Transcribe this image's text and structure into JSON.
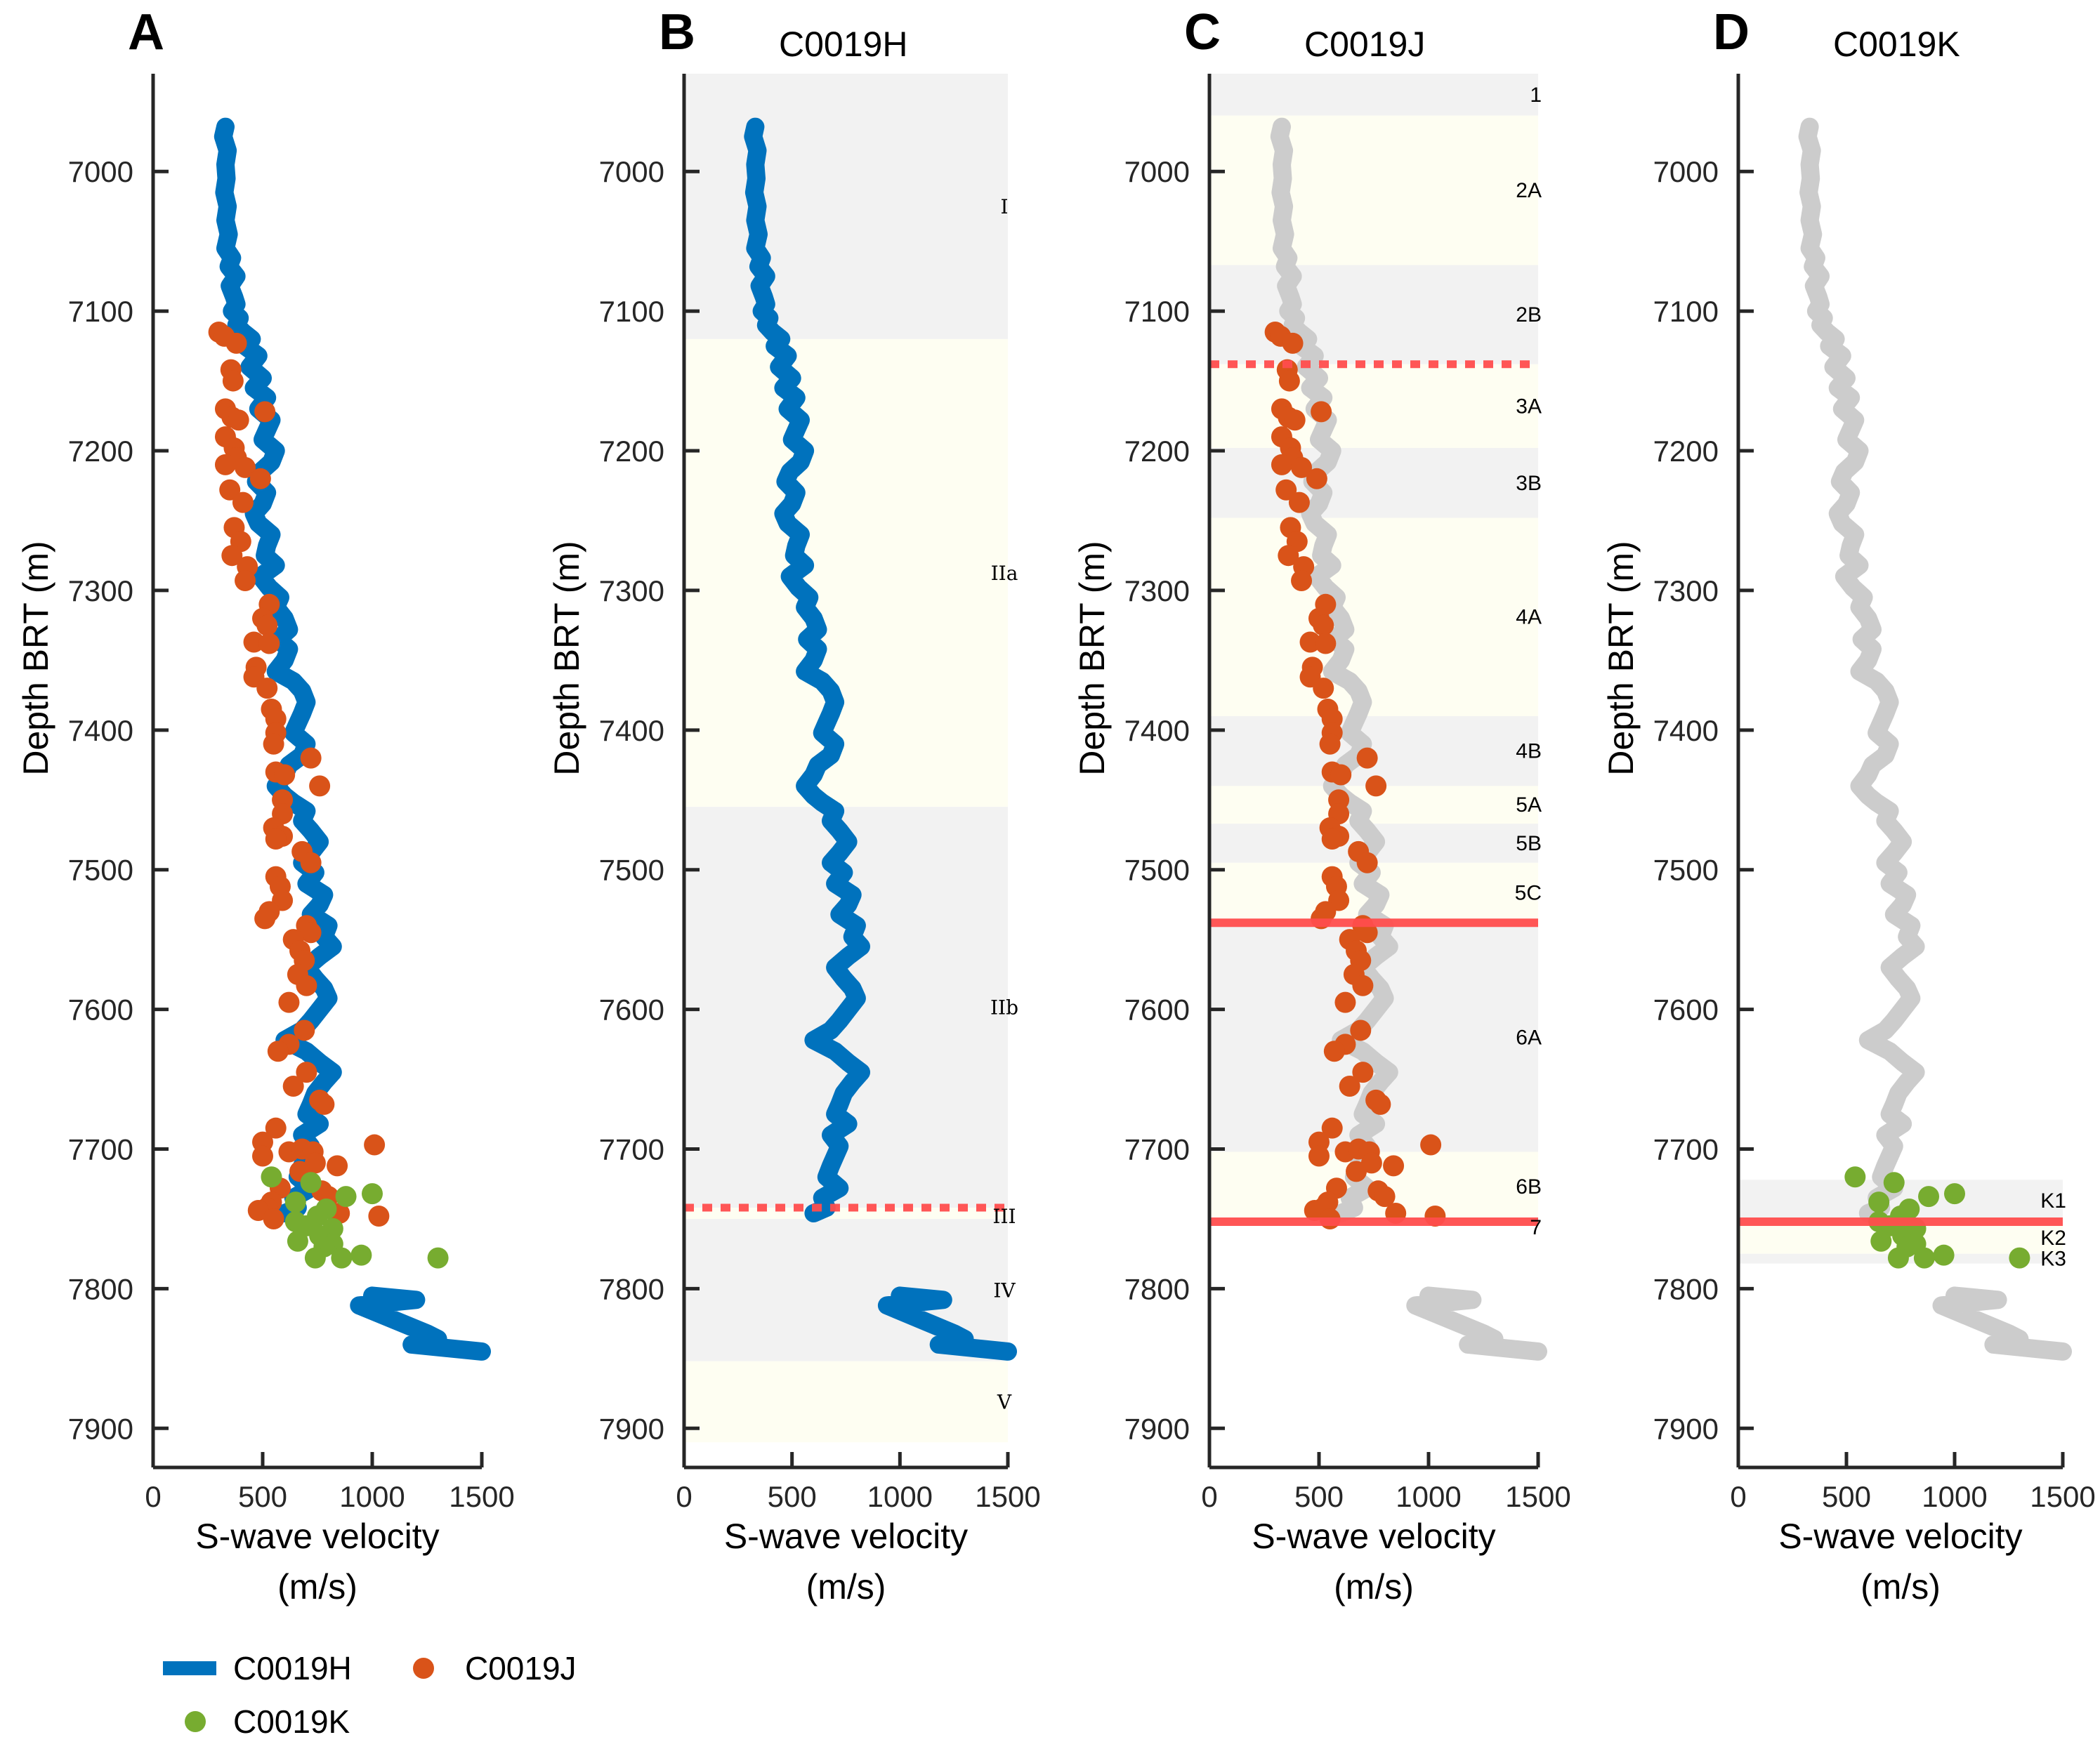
{
  "chart_data": {
    "type": "scatter",
    "figure": "S-wave velocity vs depth for boreholes C0019H, C0019J, C0019K",
    "ylim": [
      6930,
      7928
    ],
    "xlim": [
      0,
      1500
    ],
    "yreversed": true,
    "y_ticks": [
      7000,
      7100,
      7200,
      7300,
      7400,
      7500,
      7600,
      7700,
      7800,
      7900
    ],
    "x_ticks": [
      0,
      500,
      1000,
      1500
    ],
    "ylabel": "Depth BRT (m)",
    "xlabel_line1": "S-wave velocity",
    "xlabel_line2": "(m/s)",
    "colors": {
      "C0019H": "#0072BD",
      "C0019J": "#D95319",
      "C0019K": "#77AC30",
      "background_profile": "#CCCCCC",
      "band_gray": "#F2F2F2",
      "band_yellow": "#FEFEF2",
      "boundary_red": "#FF4D4D"
    },
    "legend": {
      "placement": "bottom-left",
      "entries": [
        {
          "name": "C0019H",
          "marker": "line"
        },
        {
          "name": "C0019J",
          "marker": "dot"
        },
        {
          "name": "C0019K",
          "marker": "dot"
        }
      ]
    },
    "series": {
      "C0019H": {
        "name": "C0019H",
        "style": "thick-line",
        "depth": [
          6968,
          6975,
          6985,
          6995,
          7005,
          7015,
          7025,
          7035,
          7045,
          7055,
          7062,
          7068,
          7075,
          7082,
          7090,
          7095,
          7100,
          7105,
          7110,
          7115,
          7120,
          7125,
          7132,
          7140,
          7148,
          7155,
          7162,
          7170,
          7178,
          7185,
          7192,
          7200,
          7208,
          7215,
          7222,
          7230,
          7238,
          7245,
          7252,
          7260,
          7268,
          7275,
          7282,
          7290,
          7298,
          7305,
          7312,
          7320,
          7328,
          7335,
          7342,
          7350,
          7358,
          7365,
          7372,
          7380,
          7388,
          7395,
          7402,
          7410,
          7418,
          7425,
          7432,
          7440,
          7447,
          7452,
          7458,
          7465,
          7472,
          7480,
          7488,
          7495,
          7502,
          7510,
          7518,
          7525,
          7532,
          7540,
          7548,
          7555,
          7562,
          7570,
          7578,
          7585,
          7592,
          7600,
          7608,
          7615,
          7622,
          7630,
          7638,
          7645,
          7652,
          7660,
          7668,
          7675,
          7682,
          7690,
          7698,
          7705,
          7712,
          7720,
          7728,
          7735,
          7742,
          7746,
          7805,
          7808,
          7812,
          7832,
          7836,
          7840,
          7845
        ],
        "vs": [
          330,
          320,
          340,
          330,
          335,
          325,
          340,
          330,
          345,
          330,
          360,
          345,
          380,
          350,
          370,
          380,
          360,
          395,
          380,
          410,
          450,
          420,
          480,
          440,
          500,
          460,
          520,
          480,
          540,
          520,
          500,
          560,
          540,
          490,
          470,
          520,
          500,
          460,
          480,
          540,
          520,
          510,
          560,
          490,
          530,
          580,
          560,
          600,
          620,
          570,
          620,
          600,
          560,
          640,
          680,
          700,
          680,
          660,
          640,
          700,
          680,
          620,
          600,
          560,
          600,
          640,
          700,
          680,
          720,
          760,
          720,
          680,
          740,
          700,
          780,
          760,
          720,
          800,
          780,
          820,
          760,
          700,
          740,
          780,
          800,
          760,
          720,
          680,
          600,
          700,
          760,
          820,
          780,
          740,
          720,
          700,
          760,
          680,
          720,
          700,
          680,
          660,
          720,
          640,
          660,
          600,
          1000,
          1200,
          940,
          1250,
          1300,
          1180,
          1500
        ]
      },
      "C0019J": {
        "name": "C0019J",
        "style": "dots",
        "points": [
          {
            "depth": 7115,
            "vs": 300
          },
          {
            "depth": 7118,
            "vs": 325
          },
          {
            "depth": 7123,
            "vs": 380
          },
          {
            "depth": 7142,
            "vs": 355
          },
          {
            "depth": 7150,
            "vs": 365
          },
          {
            "depth": 7170,
            "vs": 330
          },
          {
            "depth": 7176,
            "vs": 360
          },
          {
            "depth": 7178,
            "vs": 390
          },
          {
            "depth": 7172,
            "vs": 510
          },
          {
            "depth": 7190,
            "vs": 330
          },
          {
            "depth": 7198,
            "vs": 370
          },
          {
            "depth": 7205,
            "vs": 380
          },
          {
            "depth": 7210,
            "vs": 330
          },
          {
            "depth": 7212,
            "vs": 420
          },
          {
            "depth": 7220,
            "vs": 490
          },
          {
            "depth": 7228,
            "vs": 350
          },
          {
            "depth": 7237,
            "vs": 410
          },
          {
            "depth": 7255,
            "vs": 370
          },
          {
            "depth": 7265,
            "vs": 400
          },
          {
            "depth": 7275,
            "vs": 360
          },
          {
            "depth": 7283,
            "vs": 430
          },
          {
            "depth": 7293,
            "vs": 420
          },
          {
            "depth": 7310,
            "vs": 530
          },
          {
            "depth": 7320,
            "vs": 500
          },
          {
            "depth": 7325,
            "vs": 520
          },
          {
            "depth": 7337,
            "vs": 460
          },
          {
            "depth": 7338,
            "vs": 530
          },
          {
            "depth": 7355,
            "vs": 470
          },
          {
            "depth": 7362,
            "vs": 460
          },
          {
            "depth": 7370,
            "vs": 520
          },
          {
            "depth": 7385,
            "vs": 540
          },
          {
            "depth": 7392,
            "vs": 560
          },
          {
            "depth": 7402,
            "vs": 560
          },
          {
            "depth": 7410,
            "vs": 550
          },
          {
            "depth": 7420,
            "vs": 720
          },
          {
            "depth": 7430,
            "vs": 560
          },
          {
            "depth": 7432,
            "vs": 600
          },
          {
            "depth": 7440,
            "vs": 760
          },
          {
            "depth": 7450,
            "vs": 590
          },
          {
            "depth": 7460,
            "vs": 590
          },
          {
            "depth": 7470,
            "vs": 550
          },
          {
            "depth": 7476,
            "vs": 590
          },
          {
            "depth": 7478,
            "vs": 560
          },
          {
            "depth": 7487,
            "vs": 680
          },
          {
            "depth": 7495,
            "vs": 720
          },
          {
            "depth": 7505,
            "vs": 560
          },
          {
            "depth": 7512,
            "vs": 580
          },
          {
            "depth": 7522,
            "vs": 590
          },
          {
            "depth": 7530,
            "vs": 530
          },
          {
            "depth": 7535,
            "vs": 510
          },
          {
            "depth": 7540,
            "vs": 700
          },
          {
            "depth": 7545,
            "vs": 720
          },
          {
            "depth": 7550,
            "vs": 640
          },
          {
            "depth": 7558,
            "vs": 670
          },
          {
            "depth": 7565,
            "vs": 690
          },
          {
            "depth": 7575,
            "vs": 660
          },
          {
            "depth": 7583,
            "vs": 700
          },
          {
            "depth": 7595,
            "vs": 620
          },
          {
            "depth": 7615,
            "vs": 690
          },
          {
            "depth": 7625,
            "vs": 620
          },
          {
            "depth": 7630,
            "vs": 570
          },
          {
            "depth": 7645,
            "vs": 700
          },
          {
            "depth": 7655,
            "vs": 640
          },
          {
            "depth": 7665,
            "vs": 760
          },
          {
            "depth": 7668,
            "vs": 780
          },
          {
            "depth": 7685,
            "vs": 560
          },
          {
            "depth": 7695,
            "vs": 500
          },
          {
            "depth": 7705,
            "vs": 500
          },
          {
            "depth": 7697,
            "vs": 1010
          },
          {
            "depth": 7702,
            "vs": 620
          },
          {
            "depth": 7700,
            "vs": 680
          },
          {
            "depth": 7702,
            "vs": 730
          },
          {
            "depth": 7710,
            "vs": 740
          },
          {
            "depth": 7712,
            "vs": 840
          },
          {
            "depth": 7716,
            "vs": 670
          },
          {
            "depth": 7728,
            "vs": 580
          },
          {
            "depth": 7730,
            "vs": 770
          },
          {
            "depth": 7734,
            "vs": 800
          },
          {
            "depth": 7738,
            "vs": 540
          },
          {
            "depth": 7742,
            "vs": 520
          },
          {
            "depth": 7744,
            "vs": 480
          },
          {
            "depth": 7746,
            "vs": 850
          },
          {
            "depth": 7748,
            "vs": 1030
          },
          {
            "depth": 7750,
            "vs": 550
          }
        ]
      },
      "C0019K": {
        "name": "C0019K",
        "style": "dots",
        "points": [
          {
            "depth": 7720,
            "vs": 540
          },
          {
            "depth": 7724,
            "vs": 720
          },
          {
            "depth": 7734,
            "vs": 880
          },
          {
            "depth": 7732,
            "vs": 1000
          },
          {
            "depth": 7738,
            "vs": 650
          },
          {
            "depth": 7743,
            "vs": 790
          },
          {
            "depth": 7748,
            "vs": 750
          },
          {
            "depth": 7752,
            "vs": 650
          },
          {
            "depth": 7755,
            "vs": 700
          },
          {
            "depth": 7757,
            "vs": 820
          },
          {
            "depth": 7762,
            "vs": 760
          },
          {
            "depth": 7766,
            "vs": 660
          },
          {
            "depth": 7768,
            "vs": 820
          },
          {
            "depth": 7770,
            "vs": 780
          },
          {
            "depth": 7776,
            "vs": 950
          },
          {
            "depth": 7778,
            "vs": 740
          },
          {
            "depth": 7778,
            "vs": 860
          },
          {
            "depth": 7778,
            "vs": 1300
          }
        ]
      }
    },
    "panels": [
      {
        "id": "A",
        "letter": "A",
        "title": "",
        "shows": [
          "C0019H",
          "C0019J",
          "C0019K"
        ],
        "bands": [],
        "boundaries": []
      },
      {
        "id": "B",
        "letter": "B",
        "title": "C0019H",
        "shows": [
          "C0019H"
        ],
        "label_style": "roman",
        "bands": [
          {
            "label": "I",
            "top": 6930,
            "bottom": 7120,
            "color": "gray"
          },
          {
            "label": "IIa",
            "top": 7120,
            "bottom": 7455,
            "color": "yellow"
          },
          {
            "label": "IIb",
            "top": 7455,
            "bottom": 7742,
            "color": "gray"
          },
          {
            "label": "III",
            "top": 7742,
            "bottom": 7750,
            "color": "yellow"
          },
          {
            "label": "IV",
            "top": 7750,
            "bottom": 7852,
            "color": "gray"
          },
          {
            "label": "V",
            "top": 7852,
            "bottom": 7910,
            "color": "yellow"
          }
        ],
        "boundaries": [
          {
            "depth": 7742,
            "style": "dashed"
          }
        ]
      },
      {
        "id": "C",
        "letter": "C",
        "title": "C0019J",
        "shows": [
          "background",
          "C0019J"
        ],
        "label_style": "sans",
        "bands": [
          {
            "label": "1",
            "top": 6930,
            "bottom": 6960,
            "color": "gray"
          },
          {
            "label": "2A",
            "top": 6960,
            "bottom": 7067,
            "color": "yellow"
          },
          {
            "label": "2B",
            "top": 7067,
            "bottom": 7138,
            "color": "gray"
          },
          {
            "label": "3A",
            "top": 7138,
            "bottom": 7198,
            "color": "yellow"
          },
          {
            "label": "3B",
            "top": 7198,
            "bottom": 7248,
            "color": "gray"
          },
          {
            "label": "4A",
            "top": 7248,
            "bottom": 7390,
            "color": "yellow"
          },
          {
            "label": "4B",
            "top": 7390,
            "bottom": 7440,
            "color": "gray"
          },
          {
            "label": "5A",
            "top": 7440,
            "bottom": 7467,
            "color": "yellow"
          },
          {
            "label": "5B",
            "top": 7467,
            "bottom": 7495,
            "color": "gray"
          },
          {
            "label": "5C",
            "top": 7495,
            "bottom": 7538,
            "color": "yellow"
          },
          {
            "label": "6A",
            "top": 7538,
            "bottom": 7702,
            "color": "gray"
          },
          {
            "label": "6B",
            "top": 7702,
            "bottom": 7752,
            "color": "yellow"
          },
          {
            "label": "7",
            "top": 7752,
            "bottom": 7752,
            "color": "none"
          }
        ],
        "boundaries": [
          {
            "depth": 7138,
            "style": "dashed"
          },
          {
            "depth": 7538,
            "style": "solid"
          },
          {
            "depth": 7752,
            "style": "solid"
          }
        ]
      },
      {
        "id": "D",
        "letter": "D",
        "title": "C0019K",
        "shows": [
          "background",
          "C0019K"
        ],
        "label_style": "sans",
        "bands": [
          {
            "label": "K1",
            "top": 7722,
            "bottom": 7752,
            "color": "gray"
          },
          {
            "label": "K2",
            "top": 7752,
            "bottom": 7775,
            "color": "yellow"
          },
          {
            "label": "K3",
            "top": 7775,
            "bottom": 7782,
            "color": "gray"
          }
        ],
        "boundaries": [
          {
            "depth": 7752,
            "style": "solid"
          }
        ]
      }
    ]
  }
}
